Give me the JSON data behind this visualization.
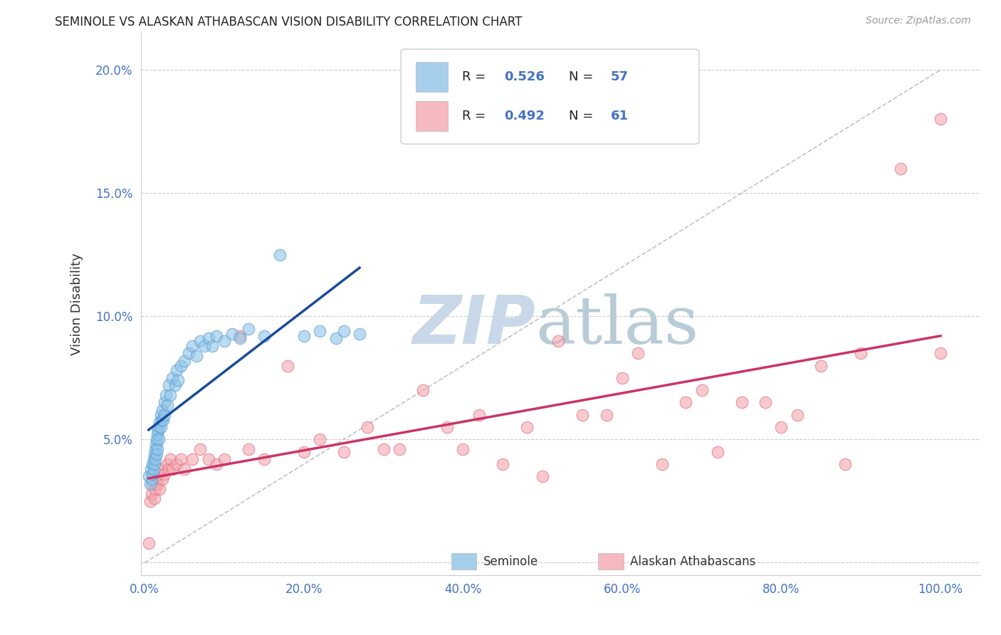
{
  "title": "SEMINOLE VS ALASKAN ATHABASCAN VISION DISABILITY CORRELATION CHART",
  "source": "Source: ZipAtlas.com",
  "ylabel": "Vision Disability",
  "xlim": [
    -0.005,
    1.05
  ],
  "ylim": [
    -0.005,
    0.215
  ],
  "xticks": [
    0.0,
    0.2,
    0.4,
    0.6,
    0.8,
    1.0
  ],
  "xticklabels": [
    "0.0%",
    "20.0%",
    "40.0%",
    "60.0%",
    "80.0%",
    "100.0%"
  ],
  "yticks": [
    0.0,
    0.05,
    0.1,
    0.15,
    0.2
  ],
  "yticklabels": [
    "",
    "5.0%",
    "10.0%",
    "15.0%",
    "20.0%"
  ],
  "seminole_color": "#90c4e8",
  "seminole_edge": "#5a9fd4",
  "athabascan_color": "#f4a8b0",
  "athabascan_edge": "#e07080",
  "trend_blue": "#1a4a9b",
  "trend_pink": "#cc3366",
  "ref_line_color": "#bbbbbb",
  "background_color": "#ffffff",
  "grid_color": "#cccccc",
  "tick_color": "#4472c4",
  "legend_color": "#4472c4",
  "seminole_x": [
    0.005,
    0.007,
    0.008,
    0.009,
    0.01,
    0.01,
    0.011,
    0.011,
    0.012,
    0.012,
    0.013,
    0.013,
    0.014,
    0.015,
    0.015,
    0.016,
    0.016,
    0.017,
    0.018,
    0.018,
    0.019,
    0.02,
    0.02,
    0.021,
    0.022,
    0.023,
    0.025,
    0.025,
    0.027,
    0.028,
    0.03,
    0.032,
    0.035,
    0.038,
    0.04,
    0.042,
    0.045,
    0.05,
    0.055,
    0.06,
    0.065,
    0.07,
    0.075,
    0.08,
    0.085,
    0.09,
    0.1,
    0.11,
    0.12,
    0.13,
    0.15,
    0.17,
    0.2,
    0.22,
    0.24,
    0.25,
    0.27
  ],
  "seminole_y": [
    0.035,
    0.032,
    0.038,
    0.034,
    0.04,
    0.036,
    0.042,
    0.038,
    0.044,
    0.04,
    0.046,
    0.042,
    0.048,
    0.05,
    0.044,
    0.052,
    0.046,
    0.054,
    0.055,
    0.05,
    0.057,
    0.06,
    0.055,
    0.058,
    0.062,
    0.058,
    0.065,
    0.06,
    0.068,
    0.064,
    0.072,
    0.068,
    0.075,
    0.072,
    0.078,
    0.074,
    0.08,
    0.082,
    0.085,
    0.088,
    0.084,
    0.09,
    0.088,
    0.091,
    0.088,
    0.092,
    0.09,
    0.093,
    0.091,
    0.095,
    0.092,
    0.125,
    0.092,
    0.094,
    0.091,
    0.094,
    0.093
  ],
  "athabascan_x": [
    0.005,
    0.007,
    0.009,
    0.01,
    0.012,
    0.013,
    0.015,
    0.016,
    0.018,
    0.019,
    0.02,
    0.022,
    0.025,
    0.028,
    0.03,
    0.032,
    0.035,
    0.04,
    0.045,
    0.05,
    0.06,
    0.07,
    0.08,
    0.09,
    0.1,
    0.12,
    0.13,
    0.15,
    0.18,
    0.2,
    0.22,
    0.25,
    0.28,
    0.3,
    0.32,
    0.35,
    0.38,
    0.4,
    0.42,
    0.45,
    0.48,
    0.5,
    0.52,
    0.55,
    0.58,
    0.6,
    0.62,
    0.65,
    0.68,
    0.7,
    0.72,
    0.75,
    0.78,
    0.8,
    0.82,
    0.85,
    0.88,
    0.9,
    0.95,
    1.0,
    1.0
  ],
  "athabascan_y": [
    0.008,
    0.025,
    0.028,
    0.032,
    0.026,
    0.03,
    0.035,
    0.032,
    0.036,
    0.03,
    0.038,
    0.034,
    0.036,
    0.04,
    0.038,
    0.042,
    0.038,
    0.04,
    0.042,
    0.038,
    0.042,
    0.046,
    0.042,
    0.04,
    0.042,
    0.092,
    0.046,
    0.042,
    0.08,
    0.045,
    0.05,
    0.045,
    0.055,
    0.046,
    0.046,
    0.07,
    0.055,
    0.046,
    0.06,
    0.04,
    0.055,
    0.035,
    0.09,
    0.06,
    0.06,
    0.075,
    0.085,
    0.04,
    0.065,
    0.07,
    0.045,
    0.065,
    0.065,
    0.055,
    0.06,
    0.08,
    0.04,
    0.085,
    0.16,
    0.085,
    0.18
  ]
}
